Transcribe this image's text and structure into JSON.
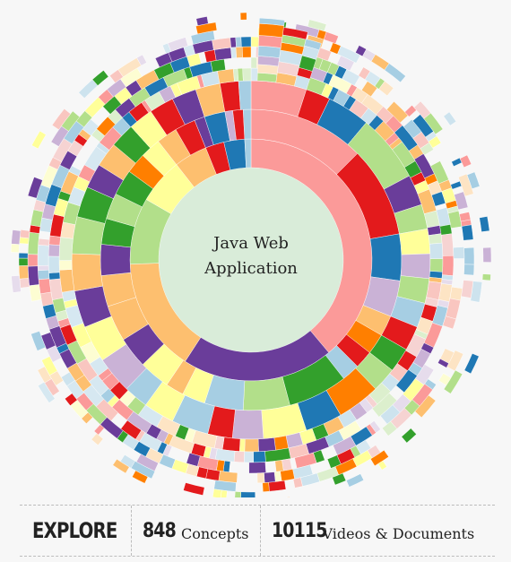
{
  "center": {
    "line1": "Java Web",
    "line2": "Application"
  },
  "stats": {
    "explore_label": "EXPLORE",
    "concepts_count": "848",
    "concepts_label": "Concepts",
    "videos_count": "10115",
    "videos_label": "Videos & Documents"
  },
  "colors": {
    "center_fill": "#d9ecd9",
    "palette": [
      "#fb9a99",
      "#e31a1c",
      "#1f78b4",
      "#a6cee3",
      "#33a02c",
      "#b2df8a",
      "#ff7f00",
      "#fdbf6f",
      "#6a3d9a",
      "#cab2d6",
      "#ffff99"
    ]
  }
}
